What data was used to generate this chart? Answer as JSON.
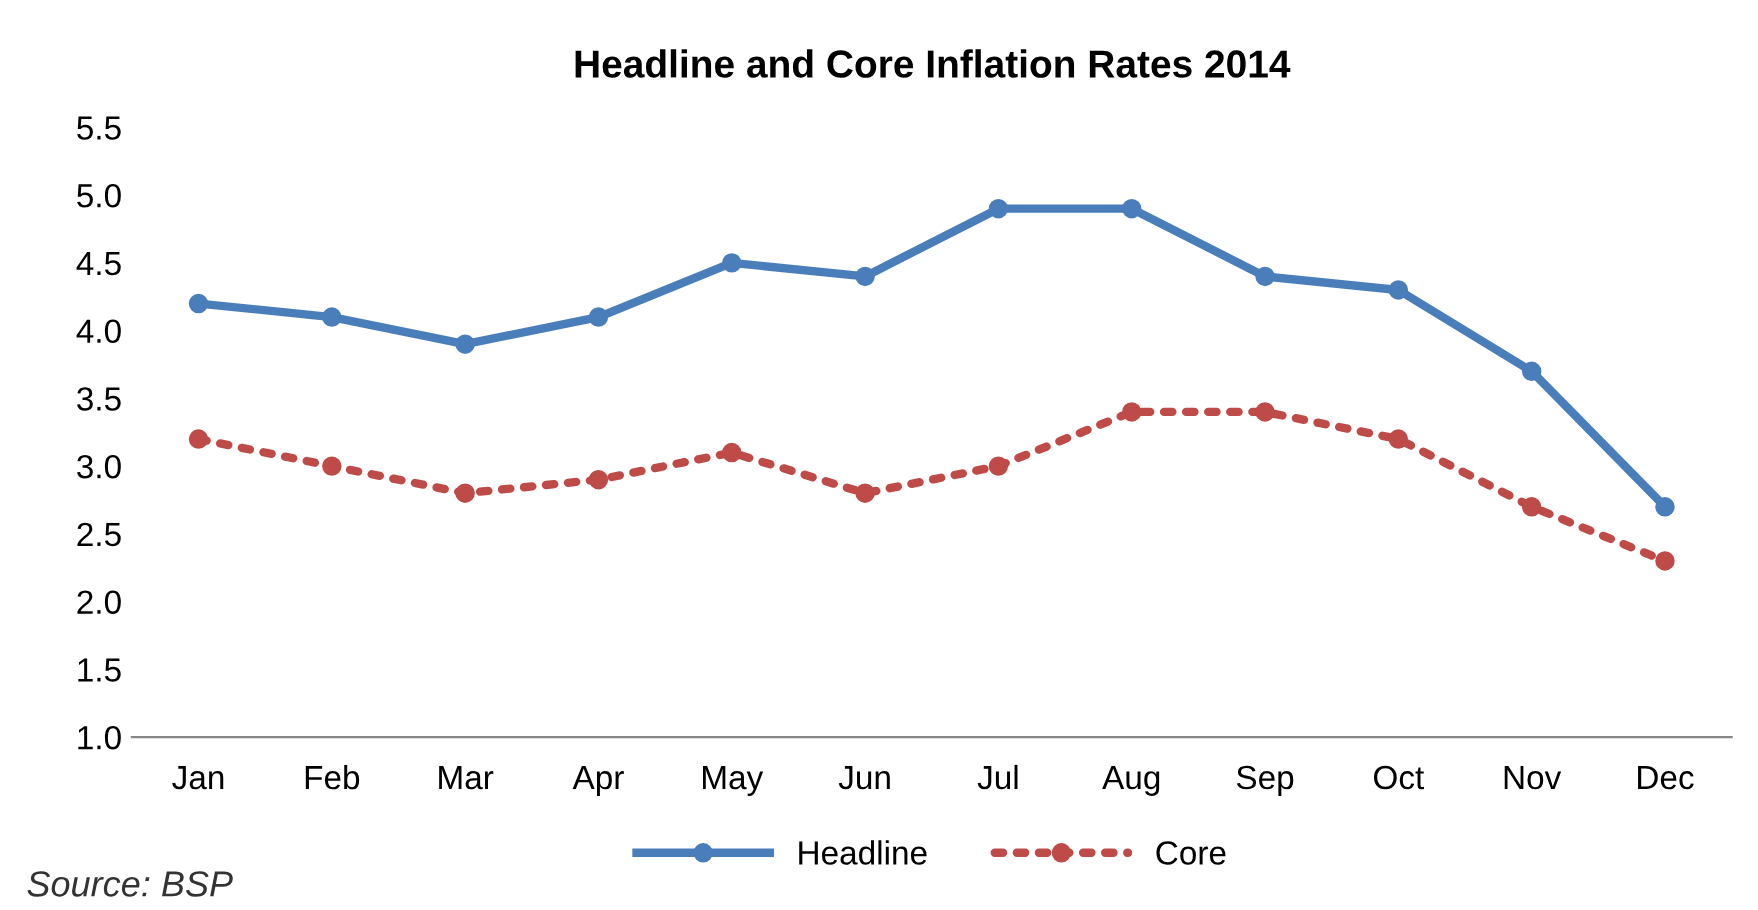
{
  "chart_data": {
    "type": "line",
    "title": "Headline and Core Inflation Rates 2014",
    "categories": [
      "Jan",
      "Feb",
      "Mar",
      "Apr",
      "May",
      "Jun",
      "Jul",
      "Aug",
      "Sep",
      "Oct",
      "Nov",
      "Dec"
    ],
    "series": [
      {
        "name": "Headline",
        "color": "#4a7ebb",
        "marker": "circle",
        "line_style": "solid",
        "values": [
          4.2,
          4.1,
          3.9,
          4.1,
          4.5,
          4.4,
          4.9,
          4.9,
          4.4,
          4.3,
          3.7,
          2.7
        ]
      },
      {
        "name": "Core",
        "color": "#be4b48",
        "marker": "circle",
        "line_style": "dotted",
        "values": [
          3.2,
          3.0,
          2.8,
          2.9,
          3.1,
          2.8,
          3.0,
          3.4,
          3.4,
          3.2,
          2.7,
          2.3
        ]
      }
    ],
    "ylim": [
      1.0,
      5.5
    ],
    "yticks": [
      {
        "value": 1.0,
        "label": "1.0"
      },
      {
        "value": 1.5,
        "label": "1.5"
      },
      {
        "value": 2.0,
        "label": "2.0"
      },
      {
        "value": 2.5,
        "label": "2.5"
      },
      {
        "value": 3.0,
        "label": "3.0"
      },
      {
        "value": 3.5,
        "label": "3.5"
      },
      {
        "value": 4.0,
        "label": "4.0"
      },
      {
        "value": 4.5,
        "label": "4.5"
      },
      {
        "value": 5.0,
        "label": "5.0"
      },
      {
        "value": 5.5,
        "label": "5.5"
      }
    ],
    "grid": false,
    "legend": "bottom",
    "annotations": [
      "Source: BSP"
    ]
  }
}
